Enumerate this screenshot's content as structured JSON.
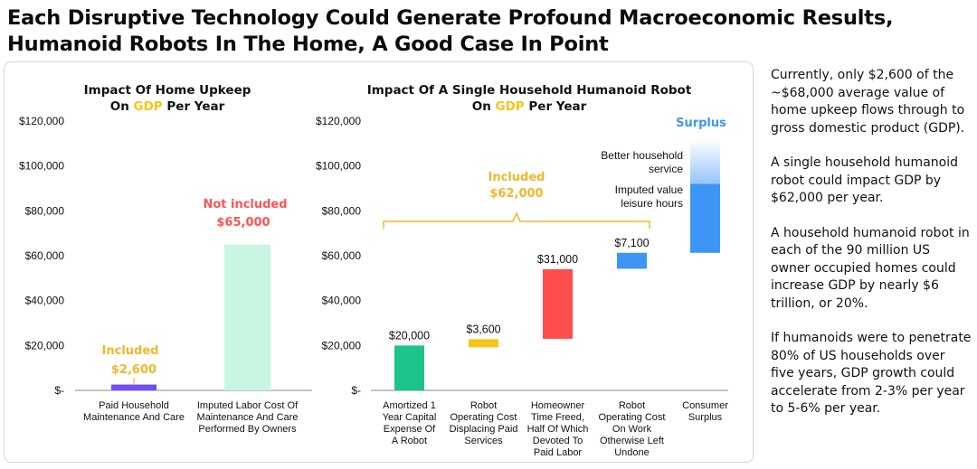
{
  "title": {
    "line1": "Each Disruptive Technology Could Generate Profound Macroeconomic Results,",
    "line2": "Humanoid Robots In The Home, A Good Case In Point"
  },
  "colors": {
    "accent_yellow": "#f5c518",
    "purple": "#6f4ef2",
    "mint": "#c8f6e3",
    "green": "#1ec28b",
    "red": "#ff4d4d",
    "blue": "#3d95f6",
    "label_red": "#ff5252",
    "gold_label": "#f0b72a"
  },
  "chart_data": [
    {
      "type": "bar",
      "title_line1": "Impact Of Home Upkeep",
      "title_line2": {
        "pre": "On ",
        "highlight": "GDP",
        "post": " Per Year"
      },
      "categories": [
        [
          "Paid Household",
          "Maintenance And Care"
        ],
        [
          "Imputed Labor Cost Of",
          "Maintenance And Care",
          "Performed By Owners"
        ]
      ],
      "values": [
        2600,
        65000
      ],
      "bar_colors": [
        "#6f4ef2",
        "#c8f6e3"
      ],
      "annotations": [
        {
          "category": 0,
          "line1": "Included",
          "line2": "$2,600",
          "color": "#f0b72a"
        },
        {
          "category": 1,
          "line1": "Not included",
          "line2": "$65,000",
          "color": "#ff5252"
        }
      ],
      "y_ticks": [
        "$120,000",
        "$100,000",
        "$80,000",
        "$60,000",
        "$40,000",
        "$20,000",
        "$-"
      ],
      "ylim": [
        0,
        120000
      ]
    },
    {
      "type": "waterfall",
      "title_line1": "Impact Of A Single Household Humanoid Robot",
      "title_line2": {
        "pre": "On ",
        "highlight": "GDP",
        "post": " Per Year"
      },
      "categories": [
        [
          "Amortized 1",
          "Year Capital",
          "Expense Of",
          "A Robot"
        ],
        [
          "Robot",
          "Operating Cost",
          "Displacing Paid",
          "Services"
        ],
        [
          "Homeowner",
          "Time Freed,",
          "Half Of Which",
          "Devoted To",
          "Paid Labor"
        ],
        [
          "Robot",
          "Operating Cost",
          "On Work",
          "Otherwise Left",
          "Undone"
        ],
        [
          "Consumer",
          "Surplus"
        ]
      ],
      "bars": [
        {
          "start": 0,
          "end": 20000,
          "label": "$20,000",
          "color": "#1ec28b"
        },
        {
          "start": 19200,
          "end": 22800,
          "label": "$3,600",
          "color": "#f5c518"
        },
        {
          "start": 23000,
          "end": 54000,
          "label": "$31,000",
          "color": "#ff4d4d"
        },
        {
          "start": 54200,
          "end": 61300,
          "label": "$7,100",
          "color": "#3d95f6"
        }
      ],
      "surplus": {
        "solid_start": 61300,
        "solid_end": 92000,
        "fade_end": 112000,
        "label": "Surplus",
        "color": "#3d95f6",
        "notes": [
          [
            "Better household",
            "service"
          ],
          [
            "Imputed value",
            "leisure hours"
          ]
        ]
      },
      "bracket": {
        "line1": "Included",
        "line2": "$62,000",
        "color": "#f0b72a"
      },
      "y_ticks": [
        "$120,000",
        "$100,000",
        "$80,000",
        "$60,000",
        "$40,000",
        "$20,000",
        "$-"
      ],
      "ylim": [
        0,
        120000
      ]
    }
  ],
  "commentary": [
    "Currently, only $2,600 of the ~$68,000 average value of home upkeep flows through to gross domestic product (GDP).",
    "A single household humanoid robot could impact GDP by $62,000 per year.",
    "A household humanoid robot in each of the 90 million US owner occupied homes could increase GDP by nearly $6 trillion, or 20%.",
    "If humanoids were to penetrate 80% of US households over five years, GDP growth could accelerate from 2-3% per year to 5-6% per year."
  ]
}
